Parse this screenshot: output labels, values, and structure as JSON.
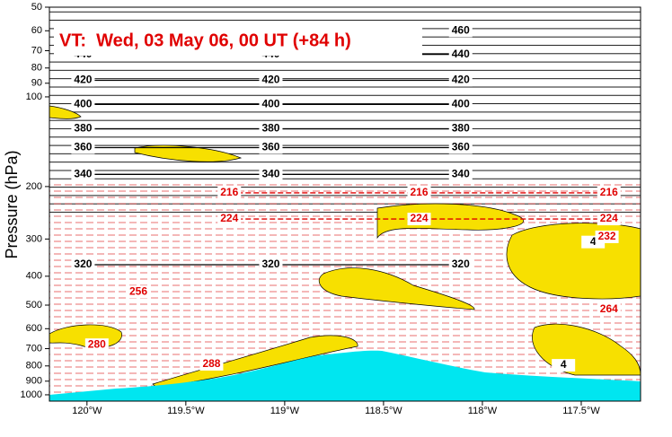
{
  "chart_data": {
    "type": "cross-section",
    "annotation": "VT:  Wed, 03 May 06, 00 UT (+84 h)",
    "y_label": "Pressure (hPa)",
    "y_log": true,
    "y_inverted": true,
    "ylim": [
      50,
      1050
    ],
    "yticks": [
      50,
      60,
      70,
      80,
      90,
      100,
      200,
      300,
      400,
      500,
      600,
      700,
      800,
      900,
      1000
    ],
    "xlim": [
      -120.19,
      -117.2
    ],
    "xticks": [
      {
        "value": -120,
        "label": "120°W"
      },
      {
        "value": -119.5,
        "label": "119.5°W"
      },
      {
        "value": -119,
        "label": "119°W"
      },
      {
        "value": -118.5,
        "label": "118.5°W"
      },
      {
        "value": -118,
        "label": "118°W"
      },
      {
        "value": -117.5,
        "label": "117.5°W"
      }
    ],
    "contour_groups": [
      {
        "color": "#000000",
        "dashed": false,
        "series": [
          {
            "name": "460",
            "x": [
              -118.11
            ],
            "values": [
              60
            ]
          },
          {
            "name": "440",
            "x": [
              -120.02,
              -119.07,
              -118.11
            ],
            "values": [
              72,
              72,
              72
            ]
          },
          {
            "name": "420",
            "x": [
              -120.02,
              -119.07,
              -118.11
            ],
            "values": [
              88,
              88,
              88
            ]
          },
          {
            "name": "400",
            "x": [
              -120.02,
              -119.07,
              -118.11
            ],
            "values": [
              106,
              106,
              106
            ]
          },
          {
            "name": "380",
            "x": [
              -120.02,
              -119.07,
              -118.11
            ],
            "values": [
              128,
              128,
              128
            ]
          },
          {
            "name": "360",
            "x": [
              -120.02,
              -119.07,
              -118.11
            ],
            "values": [
              148,
              148,
              148
            ]
          },
          {
            "name": "340",
            "x": [
              -120.02,
              -119.07,
              -118.11
            ],
            "values": [
              182,
              182,
              182
            ]
          },
          {
            "name": "320",
            "x": [
              -120.02,
              -119.07,
              -118.11
            ],
            "values": [
              366,
              366,
              366
            ]
          },
          {
            "name": "4",
            "x": [
              -117.44
            ],
            "values": [
              307
            ]
          },
          {
            "name": "4",
            "x": [
              -117.59
            ],
            "values": [
              796
            ]
          }
        ]
      },
      {
        "color": "#e00000",
        "dashed": true,
        "series": [
          {
            "name": "216",
            "x": [
              -119.28,
              -118.32,
              -117.36
            ],
            "values": [
              210,
              210,
              210
            ]
          },
          {
            "name": "224",
            "x": [
              -119.28,
              -118.32,
              -117.36
            ],
            "values": [
              257,
              257,
              257
            ]
          },
          {
            "name": "232",
            "x": [
              -117.37
            ],
            "values": [
              295
            ]
          },
          {
            "name": "256",
            "x": [
              -119.74
            ],
            "values": [
              451
            ]
          },
          {
            "name": "264",
            "x": [
              -117.36
            ],
            "values": [
              517
            ]
          },
          {
            "name": "280",
            "x": [
              -119.95
            ],
            "values": [
              679
            ]
          },
          {
            "name": "288",
            "x": [
              -119.37
            ],
            "values": [
              790
            ]
          }
        ]
      }
    ]
  }
}
